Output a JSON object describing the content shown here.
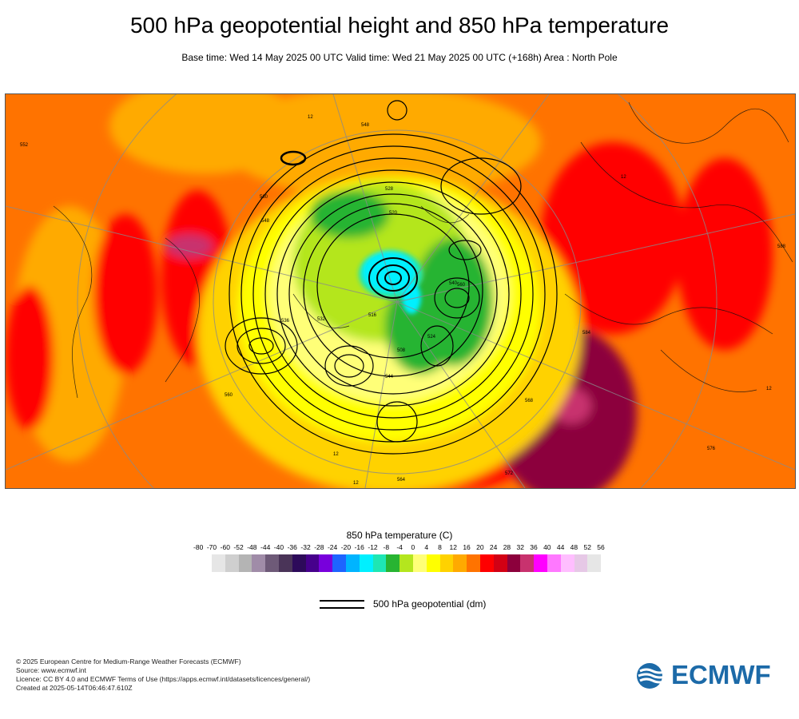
{
  "header": {
    "title": "500 hPa geopotential height and 850 hPa temperature",
    "subtitle": "Base time: Wed 14 May 2025 00 UTC Valid time: Wed 21 May 2025 00 UTC (+168h) Area : North Pole"
  },
  "map": {
    "contour_labels": [
      "552",
      "12",
      "548",
      "560",
      "528",
      "540",
      "532",
      "516",
      "524",
      "508",
      "544",
      "12",
      "564",
      "560",
      "568",
      "536",
      "572",
      "548",
      "584",
      "12",
      "12",
      "576",
      "588",
      "520",
      "560",
      "12"
    ]
  },
  "legend": {
    "title": "850 hPa temperature (C)",
    "ticks": [
      "-80",
      "-70",
      "-60",
      "-52",
      "-48",
      "-44",
      "-40",
      "-36",
      "-32",
      "-28",
      "-24",
      "-20",
      "-16",
      "-12",
      "-8",
      "-4",
      "0",
      "4",
      "8",
      "12",
      "16",
      "20",
      "24",
      "28",
      "32",
      "36",
      "40",
      "44",
      "48",
      "52",
      "56"
    ],
    "colors": [
      "#e6e6e6",
      "#cfcfcf",
      "#b4b4b4",
      "#a08ca8",
      "#6e5a78",
      "#4a3458",
      "#2d0a5a",
      "#46008c",
      "#7800dc",
      "#1e64ff",
      "#00b4ff",
      "#00f0ff",
      "#1ee6b4",
      "#28b432",
      "#b4e61e",
      "#ffff78",
      "#ffff00",
      "#ffd200",
      "#ffaa00",
      "#ff7300",
      "#ff0000",
      "#d20014",
      "#8c003c",
      "#c8326e",
      "#ff00ff",
      "#ff78ff",
      "#ffbeff",
      "#e6c8e6",
      "#e6e6e6"
    ]
  },
  "geo_legend": {
    "label": "500 hPa geopotential (dm)"
  },
  "footer": {
    "line1": "© 2025 European Centre for Medium-Range Weather Forecasts (ECMWF)",
    "line2": "Source: www.ecmwf.int",
    "line3": "Licence: CC BY 4.0 and ECMWF Terms of Use (https://apps.ecmwf.int/datasets/licences/general/)",
    "line4": "Created at 2025-05-14T06:46:47.610Z"
  },
  "logo": {
    "text": "ECMWF",
    "color": "#1c6aa8"
  }
}
